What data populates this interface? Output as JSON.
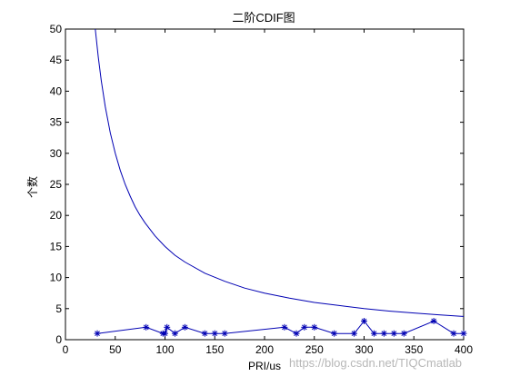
{
  "watermark": "https://blog.csdn.net/TIQCmatlab",
  "chart_data": {
    "type": "line",
    "title": "二阶CDIF图",
    "xlabel": "PRI/us",
    "ylabel": "个数",
    "xlim": [
      0,
      400
    ],
    "ylim": [
      0,
      50
    ],
    "xticks": [
      0,
      50,
      100,
      150,
      200,
      250,
      300,
      350,
      400
    ],
    "yticks": [
      0,
      5,
      10,
      15,
      20,
      25,
      30,
      35,
      40,
      45,
      50
    ],
    "grid": false,
    "legend": "none",
    "series": [
      {
        "kind": "threshold-curve",
        "color": "#0000b3",
        "x": [
          30,
          33,
          36,
          40,
          45,
          50,
          55,
          60,
          65,
          70,
          75,
          80,
          90,
          100,
          110,
          120,
          140,
          160,
          180,
          200,
          225,
          250,
          275,
          300,
          325,
          350,
          375,
          400
        ],
        "y": [
          50,
          45.5,
          41.7,
          37.5,
          33.3,
          30,
          27.3,
          25,
          23.1,
          21.4,
          20,
          18.8,
          16.7,
          15,
          13.6,
          12.5,
          10.7,
          9.4,
          8.3,
          7.5,
          6.7,
          6,
          5.5,
          5,
          4.6,
          4.3,
          4,
          3.75
        ]
      },
      {
        "kind": "counts",
        "color": "#0000b3",
        "marker": "*",
        "x": [
          32,
          81,
          98,
          100,
          102,
          110,
          120,
          140,
          150,
          160,
          220,
          232,
          240,
          250,
          270,
          290,
          300,
          310,
          320,
          330,
          340,
          370,
          390,
          400
        ],
        "y": [
          1,
          2,
          1,
          1,
          2,
          1,
          2,
          1,
          1,
          1,
          2,
          1,
          2,
          2,
          1,
          1,
          3,
          1,
          1,
          1,
          1,
          3,
          1,
          1
        ]
      }
    ]
  }
}
